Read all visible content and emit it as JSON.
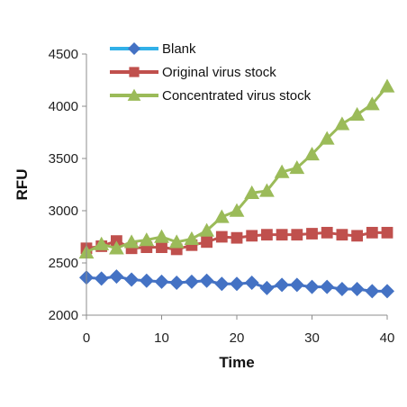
{
  "chart_data": {
    "type": "line",
    "xlabel": "Time",
    "ylabel": "RFU",
    "xlim": [
      0,
      40
    ],
    "ylim": [
      2000,
      4500
    ],
    "x_ticks": [
      "0",
      "10",
      "20",
      "30",
      "40"
    ],
    "y_ticks": [
      "2000",
      "2500",
      "3000",
      "3500",
      "4000",
      "4500"
    ],
    "grid": false,
    "legend_position": "top-left",
    "x": [
      0,
      2,
      4,
      6,
      8,
      10,
      12,
      14,
      16,
      18,
      20,
      22,
      24,
      26,
      28,
      30,
      32,
      34,
      36,
      38,
      40
    ],
    "series": [
      {
        "name": "Blank",
        "color": "#4472c4",
        "legend_color": "#31b0e8",
        "marker": "diamond",
        "values": [
          2360,
          2350,
          2370,
          2340,
          2330,
          2320,
          2310,
          2320,
          2330,
          2300,
          2300,
          2310,
          2260,
          2290,
          2290,
          2270,
          2270,
          2250,
          2250,
          2230,
          2230
        ]
      },
      {
        "name": "Original virus stock",
        "color": "#c0504d",
        "legend_color": "#c0504d",
        "marker": "square",
        "values": [
          2640,
          2660,
          2710,
          2640,
          2650,
          2650,
          2630,
          2670,
          2700,
          2750,
          2740,
          2760,
          2770,
          2770,
          2770,
          2780,
          2790,
          2770,
          2760,
          2790,
          2790
        ]
      },
      {
        "name": "Concentrated virus stock",
        "color": "#9bbb59",
        "legend_color": "#9bbb59",
        "marker": "triangle",
        "values": [
          2600,
          2680,
          2640,
          2700,
          2720,
          2750,
          2700,
          2730,
          2810,
          2940,
          3000,
          3170,
          3190,
          3370,
          3410,
          3540,
          3690,
          3830,
          3920,
          4020,
          4190
        ]
      }
    ]
  }
}
